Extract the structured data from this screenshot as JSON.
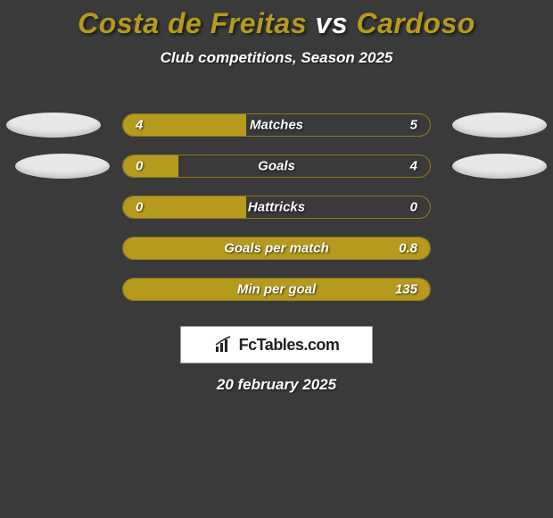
{
  "title": {
    "player1": "Costa de Freitas",
    "vs": "vs",
    "player2": "Cardoso",
    "player1_color": "#b59a1e",
    "vs_color": "#ffffff",
    "player2_color": "#b59a1e"
  },
  "subtitle": "Club competitions, Season 2025",
  "background_color": "#3a3a3a",
  "rows": [
    {
      "label": "Matches",
      "left_val": "4",
      "right_val": "5",
      "left_fill_pct": 40,
      "right_fill_pct": 0,
      "left_color": "#b59a1e",
      "right_color": "#b59a1e",
      "show_left_ellipse": true,
      "show_right_ellipse": true,
      "ellipse_class_left": "ellipse-left",
      "ellipse_class_right": "ellipse-right"
    },
    {
      "label": "Goals",
      "left_val": "0",
      "right_val": "4",
      "left_fill_pct": 18,
      "right_fill_pct": 0,
      "left_color": "#b59a1e",
      "right_color": "#b59a1e",
      "show_left_ellipse": true,
      "show_right_ellipse": true,
      "ellipse_class_left": "ellipse-row2-left",
      "ellipse_class_right": "ellipse-row2-right"
    },
    {
      "label": "Hattricks",
      "left_val": "0",
      "right_val": "0",
      "left_fill_pct": 40,
      "right_fill_pct": 0,
      "left_color": "#b59a1e",
      "right_color": "#b59a1e",
      "show_left_ellipse": false,
      "show_right_ellipse": false
    },
    {
      "label": "Goals per match",
      "left_val": "",
      "right_val": "0.8",
      "left_fill_pct": 0,
      "right_fill_pct": 100,
      "left_color": "#b59a1e",
      "right_color": "#b59a1e",
      "show_left_ellipse": false,
      "show_right_ellipse": false
    },
    {
      "label": "Min per goal",
      "left_val": "",
      "right_val": "135",
      "left_fill_pct": 0,
      "right_fill_pct": 100,
      "left_color": "#b59a1e",
      "right_color": "#b59a1e",
      "show_left_ellipse": false,
      "show_right_ellipse": false
    }
  ],
  "brand": "FcTables.com",
  "date": "20 february 2025",
  "bar_border_color": "#8f7a1f",
  "ellipse_color": "#e8e8e8"
}
